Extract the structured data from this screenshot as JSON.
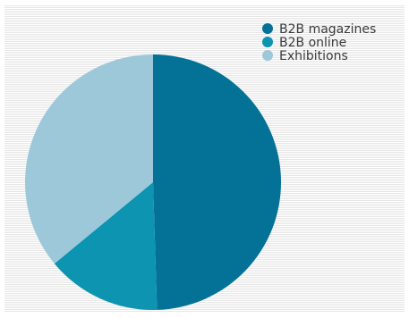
{
  "chart_data": {
    "type": "pie",
    "labels": [
      "B2B magazines",
      "B2B online",
      "Exhibitions"
    ],
    "values": [
      49.5,
      14.5,
      36.0
    ],
    "unit": "%",
    "colors": [
      "#047196",
      "#0c94b1",
      "#9cc8da"
    ],
    "start_angle": "12 o'clock, clockwise",
    "legend_position": "top-right",
    "background": "horizontal stripes",
    "title": "",
    "xlabel": "",
    "ylabel": ""
  }
}
